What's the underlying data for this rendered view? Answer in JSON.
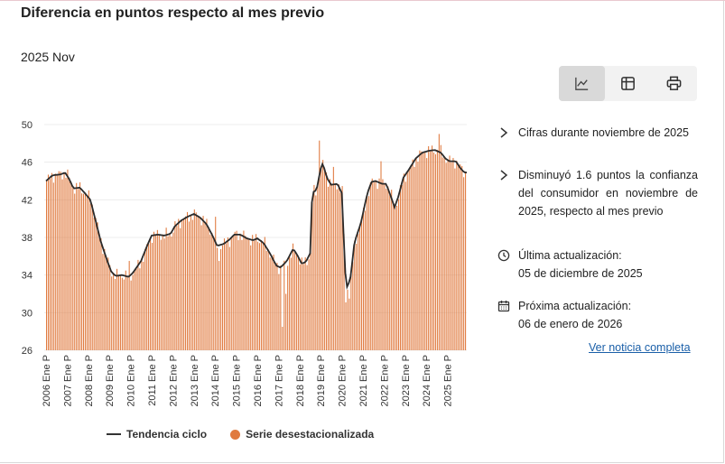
{
  "header": {
    "title": "Diferencia en puntos respecto al mes previo",
    "period": "2025 Nov"
  },
  "toolbar": {
    "icons": [
      "line-chart-icon",
      "table-icon",
      "print-icon"
    ]
  },
  "info": {
    "item1": "Cifras durante noviembre de 2025",
    "item2": "Disminuyó 1.6 puntos la confianza del consumidor en noviembre de 2025, respecto al mes previo",
    "update_label": "Última actualización:",
    "update_date": "05 de diciembre de 2025",
    "next_label": "Próxima actualización:",
    "next_date": "06 de enero de 2026",
    "link": "Ver noticia completa"
  },
  "legend": {
    "trend": "Tendencia ciclo",
    "series": "Serie desestacionalizada"
  },
  "colors": {
    "bars": "#e07a3f",
    "trend": "#2b2b2b",
    "link": "#1a5fa8"
  },
  "chart_data": {
    "type": "bar",
    "ylim": [
      26,
      50
    ],
    "yticks": [
      26,
      30,
      34,
      38,
      42,
      46,
      50
    ],
    "x_tick_labels": [
      "2006 Ene P",
      "2007 Ene P",
      "2008 Ene P",
      "2009 Ene P",
      "2010 Ene P",
      "2011 Ene P",
      "2012 Ene P",
      "2013 Ene P",
      "2014 Ene P",
      "2015 Ene P",
      "2016 Ene P",
      "2017 Ene P",
      "2018 Ene P",
      "2019 Ene P",
      "2020 Ene P",
      "2021 Ene P",
      "2022 Ene P",
      "2023 Ene P",
      "2024 Ene P",
      "2025 Ene P"
    ],
    "start": "2006-01",
    "end": "2025-11",
    "legend_position": "bottom",
    "series": [
      {
        "name": "Tendencia ciclo",
        "type": "line",
        "points": [
          [
            2006.0,
            44.0
          ],
          [
            2006.3,
            44.6
          ],
          [
            2006.7,
            44.7
          ],
          [
            2006.9,
            44.9
          ],
          [
            2007.1,
            44.2
          ],
          [
            2007.3,
            43.2
          ],
          [
            2007.6,
            43.3
          ],
          [
            2007.8,
            42.8
          ],
          [
            2008.1,
            42.0
          ],
          [
            2008.3,
            40.2
          ],
          [
            2008.6,
            37.5
          ],
          [
            2008.9,
            35.5
          ],
          [
            2009.1,
            34.3
          ],
          [
            2009.3,
            33.9
          ],
          [
            2009.6,
            34.0
          ],
          [
            2009.9,
            33.8
          ],
          [
            2010.1,
            34.2
          ],
          [
            2010.5,
            35.5
          ],
          [
            2010.8,
            37.2
          ],
          [
            2011.0,
            38.2
          ],
          [
            2011.3,
            38.3
          ],
          [
            2011.6,
            38.2
          ],
          [
            2011.9,
            38.4
          ],
          [
            2012.1,
            39.2
          ],
          [
            2012.4,
            39.8
          ],
          [
            2012.7,
            40.2
          ],
          [
            2013.0,
            40.5
          ],
          [
            2013.3,
            40.1
          ],
          [
            2013.6,
            39.4
          ],
          [
            2013.9,
            38.1
          ],
          [
            2014.1,
            37.1
          ],
          [
            2014.4,
            37.3
          ],
          [
            2014.7,
            37.8
          ],
          [
            2014.9,
            38.3
          ],
          [
            2015.2,
            38.3
          ],
          [
            2015.5,
            37.9
          ],
          [
            2015.8,
            37.7
          ],
          [
            2016.0,
            37.9
          ],
          [
            2016.3,
            37.4
          ],
          [
            2016.6,
            36.3
          ],
          [
            2016.9,
            35.0
          ],
          [
            2017.1,
            34.8
          ],
          [
            2017.4,
            35.5
          ],
          [
            2017.7,
            36.8
          ],
          [
            2017.9,
            36.1
          ],
          [
            2018.1,
            35.2
          ],
          [
            2018.3,
            35.4
          ],
          [
            2018.5,
            36.3
          ],
          [
            2018.6,
            42.8
          ],
          [
            2018.8,
            43.0
          ],
          [
            2019.0,
            45.3
          ],
          [
            2019.1,
            45.9
          ],
          [
            2019.3,
            44.3
          ],
          [
            2019.5,
            43.6
          ],
          [
            2019.8,
            43.7
          ],
          [
            2020.0,
            42.7
          ],
          [
            2020.2,
            32.5
          ],
          [
            2020.4,
            33.5
          ],
          [
            2020.6,
            37.5
          ],
          [
            2020.9,
            39.5
          ],
          [
            2021.2,
            42.6
          ],
          [
            2021.4,
            43.9
          ],
          [
            2021.6,
            44.0
          ],
          [
            2021.9,
            43.7
          ],
          [
            2022.1,
            43.7
          ],
          [
            2022.3,
            42.5
          ],
          [
            2022.5,
            41.2
          ],
          [
            2022.7,
            42.5
          ],
          [
            2022.9,
            44.3
          ],
          [
            2023.2,
            45.3
          ],
          [
            2023.5,
            46.4
          ],
          [
            2023.8,
            47.0
          ],
          [
            2024.1,
            47.2
          ],
          [
            2024.4,
            47.3
          ],
          [
            2024.7,
            47.0
          ],
          [
            2024.9,
            46.4
          ],
          [
            2025.1,
            46.1
          ],
          [
            2025.4,
            46.1
          ],
          [
            2025.6,
            45.4
          ],
          [
            2025.8,
            44.9
          ]
        ]
      },
      {
        "name": "Serie desestacionalizada",
        "type": "bar",
        "overrides": [
          [
            2017.2,
            28.5
          ],
          [
            2017.3,
            32.0
          ],
          [
            2018.9,
            48.3
          ],
          [
            2019.6,
            45.5
          ],
          [
            2020.2,
            31.1
          ],
          [
            2020.3,
            31.5
          ],
          [
            2021.8,
            46.1
          ],
          [
            2024.6,
            49.0
          ],
          [
            2014.2,
            35.5
          ],
          [
            2009.9,
            35.5
          ],
          [
            2014.0,
            40.2
          ],
          [
            2025.9,
            44.2
          ]
        ]
      }
    ]
  }
}
